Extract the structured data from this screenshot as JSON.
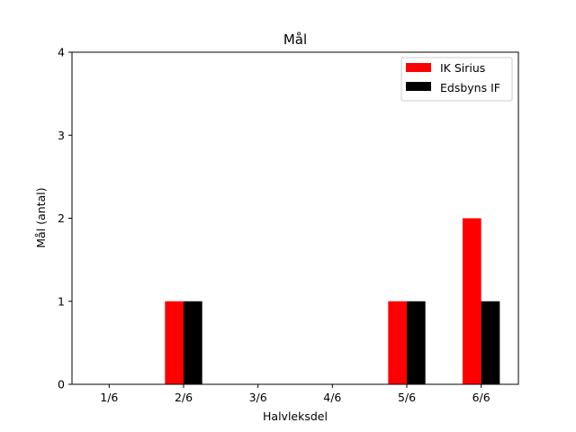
{
  "chart_data": {
    "type": "bar",
    "title": "Mål",
    "xlabel": "Halvleksdel",
    "ylabel": "Mål (antal)",
    "categories": [
      "1/6",
      "2/6",
      "3/6",
      "4/6",
      "5/6",
      "6/6"
    ],
    "ylim": [
      0,
      4
    ],
    "yticks": [
      "0",
      "1",
      "2",
      "3",
      "4"
    ],
    "grid": false,
    "legend_position": "top-right",
    "series": [
      {
        "name": "IK Sirius",
        "color": "#ff0000",
        "values": [
          0,
          1,
          0,
          0,
          1,
          2
        ]
      },
      {
        "name": "Edsbyns IF",
        "color": "#000000",
        "values": [
          0,
          1,
          0,
          0,
          1,
          1
        ]
      }
    ]
  }
}
